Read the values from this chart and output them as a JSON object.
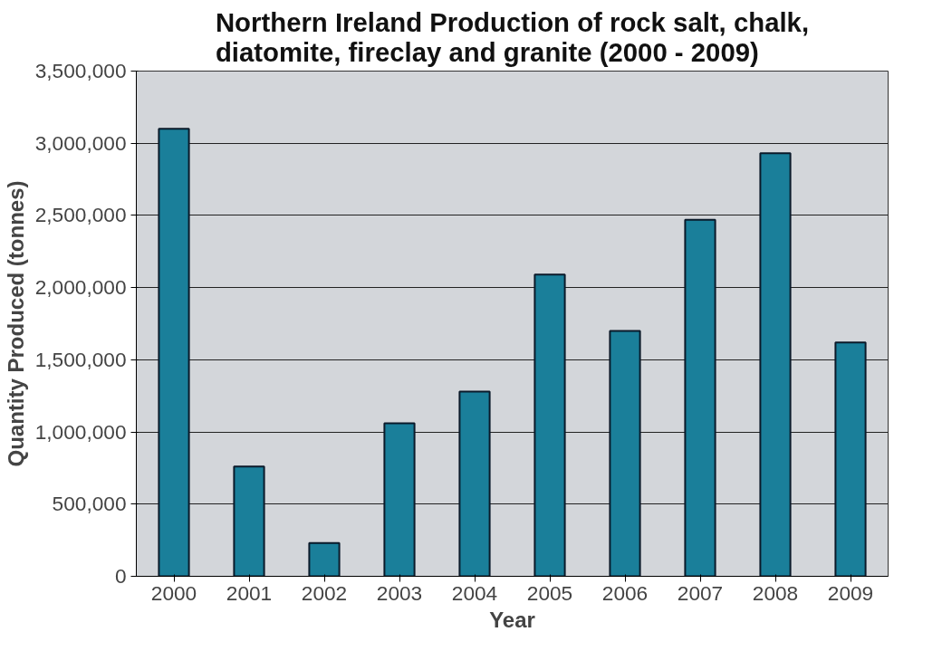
{
  "chart_data": {
    "type": "bar",
    "title": "Northern Ireland Production of rock salt, chalk,\ndiatomite, fireclay and granite (2000 - 2009)",
    "xlabel": "Year",
    "ylabel": "Quantity Produced (tonnes)",
    "categories": [
      "2000",
      "2001",
      "2002",
      "2003",
      "2004",
      "2005",
      "2006",
      "2007",
      "2008",
      "2009"
    ],
    "values": [
      3100000,
      760000,
      230000,
      1060000,
      1280000,
      2090000,
      1700000,
      2470000,
      2930000,
      1620000
    ],
    "color": "#1a7f9a",
    "ylim": [
      0,
      3500000
    ],
    "yticks": [
      {
        "value": 0,
        "label": "0"
      },
      {
        "value": 500000,
        "label": "500,000"
      },
      {
        "value": 1000000,
        "label": "1,000,000"
      },
      {
        "value": 1500000,
        "label": "1,500,000"
      },
      {
        "value": 2000000,
        "label": "2,000,000"
      },
      {
        "value": 2500000,
        "label": "2,500,000"
      },
      {
        "value": 3000000,
        "label": "3,000,000"
      },
      {
        "value": 3500000,
        "label": "3,500,000"
      }
    ],
    "grid": "y"
  }
}
